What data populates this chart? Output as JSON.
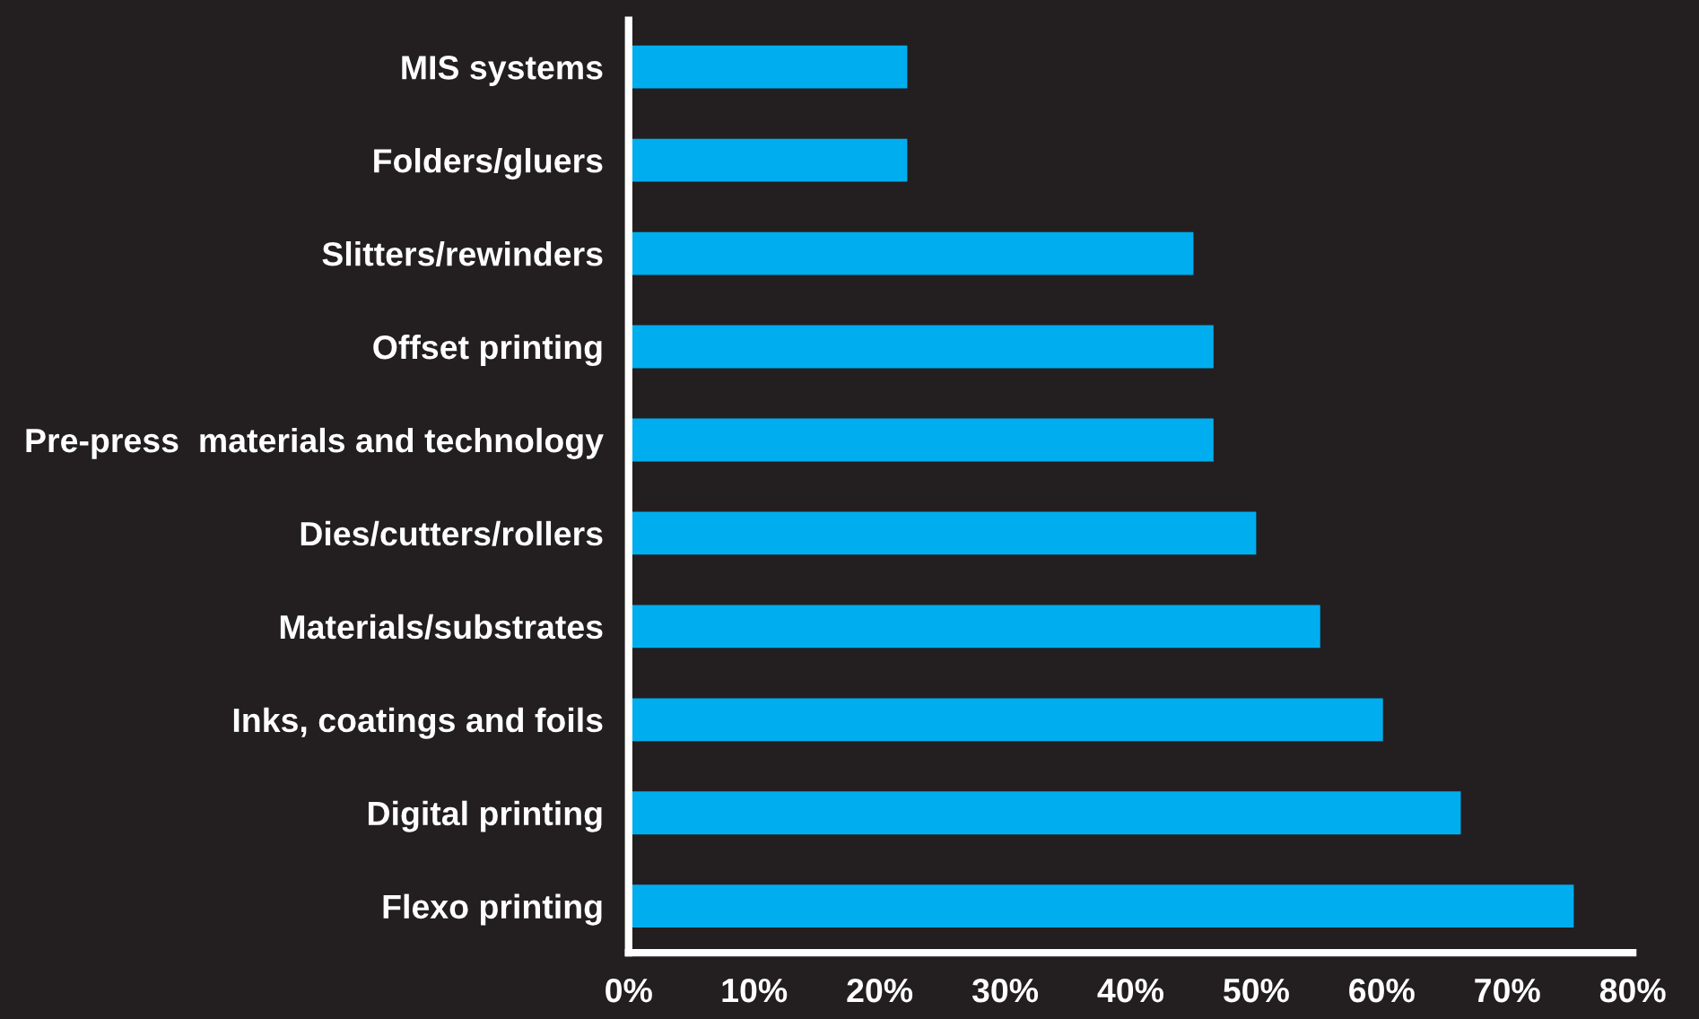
{
  "chart_data": {
    "type": "bar",
    "orientation": "horizontal",
    "categories": [
      "MIS systems",
      "Folders/gluers",
      "Slitters/rewinders",
      "Offset printing",
      "Pre-press  materials and technology",
      "Dies/cutters/rollers",
      "Materials/substrates",
      "Inks, coatings and foils",
      "Digital printing",
      "Flexo printing"
    ],
    "values": [
      22.2,
      22.2,
      45,
      46.6,
      46.6,
      50,
      55.1,
      60.1,
      66.3,
      75.3
    ],
    "color": "#00aeef",
    "xlim": [
      0,
      80
    ],
    "xticks": [
      {
        "value": 0,
        "label": "0%"
      },
      {
        "value": 10,
        "label": "10%"
      },
      {
        "value": 20,
        "label": "20%"
      },
      {
        "value": 30,
        "label": "30%"
      },
      {
        "value": 40,
        "label": "40%"
      },
      {
        "value": 50,
        "label": "50%"
      },
      {
        "value": 60,
        "label": "60%"
      },
      {
        "value": 70,
        "label": "70%"
      },
      {
        "value": 80,
        "label": "80%"
      }
    ],
    "grid": false,
    "legend": false
  }
}
